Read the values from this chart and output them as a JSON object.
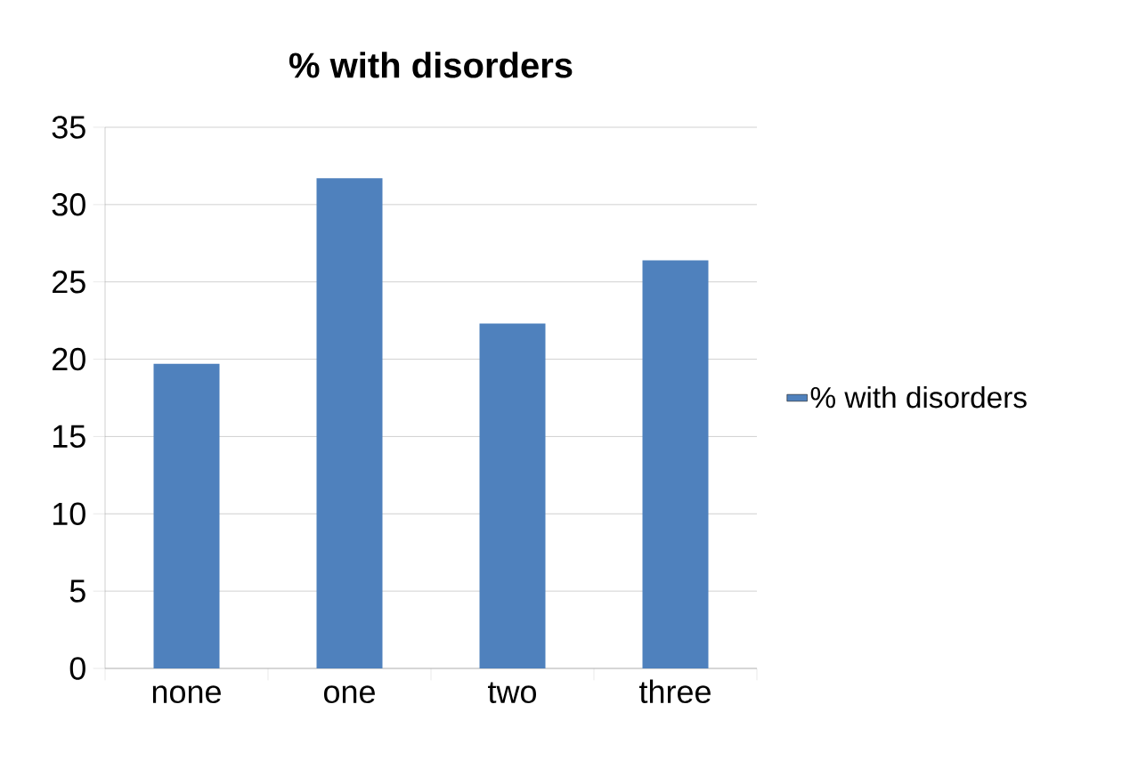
{
  "chart_data": {
    "type": "bar",
    "title": "% with disorders",
    "categories": [
      "none",
      "one",
      "two",
      "three"
    ],
    "series": [
      {
        "name": "% with disorders",
        "color": "#4f81bd",
        "values": [
          19.7,
          31.7,
          22.3,
          26.4
        ]
      }
    ],
    "ylim": [
      0,
      35
    ],
    "yticks": [
      0,
      5,
      10,
      15,
      20,
      25,
      30,
      35
    ],
    "grid": "y",
    "legend": "right"
  }
}
